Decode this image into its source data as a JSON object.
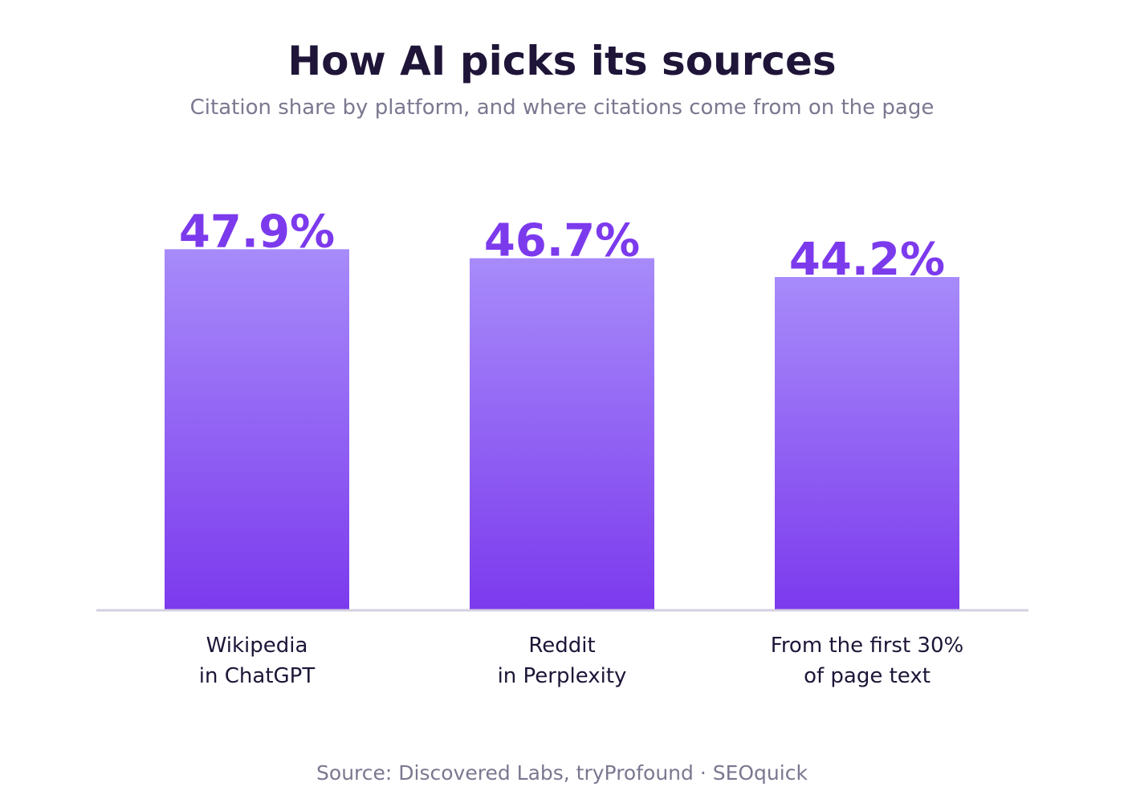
{
  "colors": {
    "background": "#ffffff",
    "title": "#1e1538",
    "subtitle": "#7a7890",
    "value_label": "#7c3aed",
    "bar_top": "#a78bfa",
    "bar_bottom": "#7c3aed",
    "axis_line": "#d4d0e0",
    "category_label": "#1e1538",
    "source": "#7a7890"
  },
  "source": "Source: Discovered Labs, tryProfound  ·  SEOquick",
  "chart_data": {
    "type": "bar",
    "title": "How AI picks its sources",
    "subtitle": "Citation share by platform, and where citations come from on the page",
    "xlabel": "",
    "ylabel": "",
    "ylim": [
      0,
      60
    ],
    "grid": false,
    "value_format": "percent",
    "categories": [
      [
        "Wikipedia",
        "in ChatGPT"
      ],
      [
        "Reddit",
        "in Perplexity"
      ],
      [
        "From the first 30%",
        "of page text"
      ]
    ],
    "values": [
      47.9,
      46.7,
      44.2
    ],
    "data_labels": [
      "47.9%",
      "46.7%",
      "44.2%"
    ]
  }
}
